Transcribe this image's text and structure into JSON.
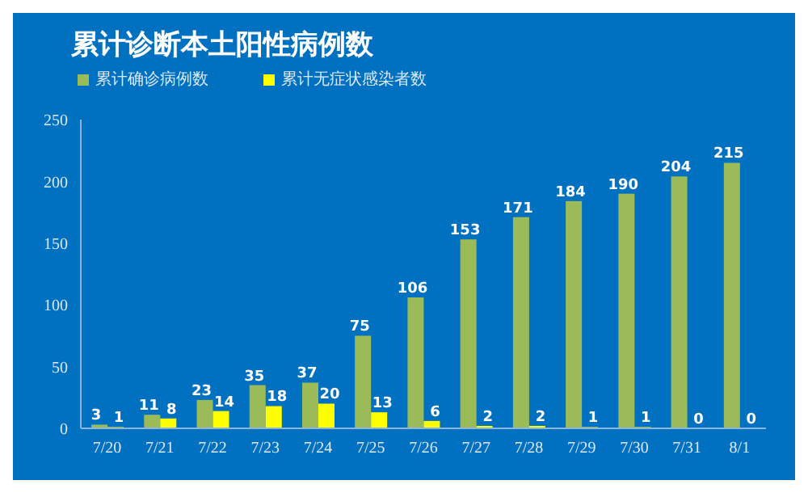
{
  "chart_data": {
    "type": "bar",
    "title": "累计诊断本土阳性病例数",
    "categories": [
      "7/20",
      "7/21",
      "7/22",
      "7/23",
      "7/24",
      "7/25",
      "7/26",
      "7/27",
      "7/28",
      "7/29",
      "7/30",
      "7/31",
      "8/1"
    ],
    "series": [
      {
        "name": "累计确诊病例数",
        "color": "#9bbb59",
        "values": [
          3,
          11,
          23,
          35,
          37,
          75,
          106,
          153,
          171,
          184,
          190,
          204,
          215
        ]
      },
      {
        "name": "累计无症状感染者数",
        "color": "#ffff00",
        "values": [
          1,
          8,
          14,
          18,
          20,
          13,
          6,
          2,
          2,
          1,
          1,
          0,
          0
        ]
      }
    ],
    "ylim": [
      0,
      250
    ],
    "yticks": [
      0,
      50,
      100,
      150,
      200,
      250
    ],
    "grid": false,
    "legend": "top left",
    "data_labels": true
  }
}
